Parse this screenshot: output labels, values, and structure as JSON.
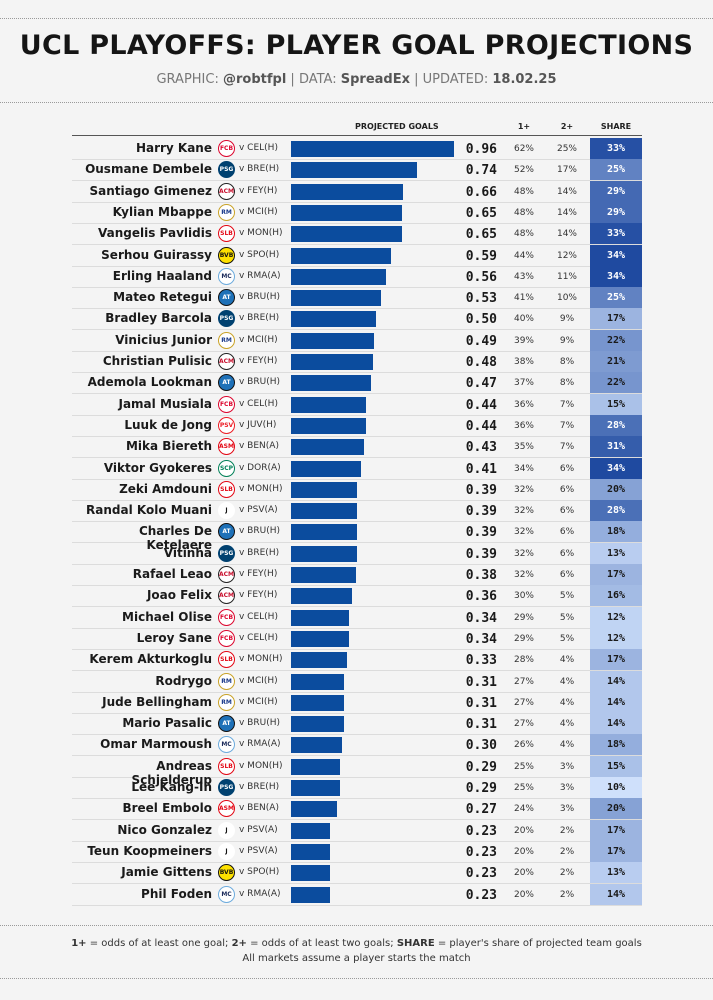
{
  "header": {
    "title": "UCL PLAYOFFS: PLAYER GOAL PROJECTIONS",
    "graphic_label": "GRAPHIC:",
    "graphic_value": "@robtfpl",
    "data_label": "DATA:",
    "data_value": "SpreadEx",
    "updated_label": "UPDATED:",
    "updated_value": "18.02.25"
  },
  "columns": {
    "projected": "PROJECTED GOALS",
    "one_plus": "1+",
    "two_plus": "2+",
    "share": "SHARE"
  },
  "colors": {
    "bar": "#0b4c9e",
    "share_scale": [
      "#cfe0fb",
      "#1f4aa0"
    ]
  },
  "footnote": {
    "key1": "1+",
    "text1": " = odds of at least one goal; ",
    "key2": "2+",
    "text2": " = odds of at least two goals; ",
    "key3": "SHARE",
    "text3": " = player's share of projected team goals",
    "line2": "All markets assume a player starts the match"
  },
  "chart_data": {
    "type": "bar",
    "xlim": [
      0,
      1
    ],
    "categories": [
      "Harry Kane",
      "Ousmane Dembele",
      "Santiago Gimenez",
      "Kylian Mbappe",
      "Vangelis Pavlidis",
      "Serhou Guirassy",
      "Erling Haaland",
      "Mateo Retegui",
      "Bradley Barcola",
      "Vinicius Junior",
      "Christian Pulisic",
      "Ademola Lookman",
      "Jamal Musiala",
      "Luuk de Jong",
      "Mika Biereth",
      "Viktor Gyokeres",
      "Zeki Amdouni",
      "Randal Kolo Muani",
      "Charles De Ketelaere",
      "Vitinha",
      "Rafael Leao",
      "Joao Felix",
      "Michael Olise",
      "Leroy Sane",
      "Kerem Akturkoglu",
      "Rodrygo",
      "Jude Bellingham",
      "Mario Pasalic",
      "Omar Marmoush",
      "Andreas Schjelderup",
      "Lee Kang-In",
      "Breel Embolo",
      "Nico Gonzalez",
      "Teun Koopmeiners",
      "Jamie Gittens",
      "Phil Foden"
    ],
    "rows": [
      {
        "player": "Harry Kane",
        "club": "bayern",
        "fixture": "v CEL(H)",
        "goals": "0.96",
        "one_plus": "62%",
        "two_plus": "25%",
        "share": "33%"
      },
      {
        "player": "Ousmane Dembele",
        "club": "psg",
        "fixture": "v BRE(H)",
        "goals": "0.74",
        "one_plus": "52%",
        "two_plus": "17%",
        "share": "25%"
      },
      {
        "player": "Santiago Gimenez",
        "club": "milan",
        "fixture": "v FEY(H)",
        "goals": "0.66",
        "one_plus": "48%",
        "two_plus": "14%",
        "share": "29%"
      },
      {
        "player": "Kylian Mbappe",
        "club": "real-madrid",
        "fixture": "v MCI(H)",
        "goals": "0.65",
        "one_plus": "48%",
        "two_plus": "14%",
        "share": "29%"
      },
      {
        "player": "Vangelis Pavlidis",
        "club": "benfica",
        "fixture": "v MON(H)",
        "goals": "0.65",
        "one_plus": "48%",
        "two_plus": "14%",
        "share": "33%"
      },
      {
        "player": "Serhou Guirassy",
        "club": "dortmund",
        "fixture": "v SPO(H)",
        "goals": "0.59",
        "one_plus": "44%",
        "two_plus": "12%",
        "share": "34%"
      },
      {
        "player": "Erling Haaland",
        "club": "man-city",
        "fixture": "v RMA(A)",
        "goals": "0.56",
        "one_plus": "43%",
        "two_plus": "11%",
        "share": "34%"
      },
      {
        "player": "Mateo Retegui",
        "club": "atalanta",
        "fixture": "v BRU(H)",
        "goals": "0.53",
        "one_plus": "41%",
        "two_plus": "10%",
        "share": "25%"
      },
      {
        "player": "Bradley Barcola",
        "club": "psg",
        "fixture": "v BRE(H)",
        "goals": "0.50",
        "one_plus": "40%",
        "two_plus": "9%",
        "share": "17%"
      },
      {
        "player": "Vinicius Junior",
        "club": "real-madrid",
        "fixture": "v MCI(H)",
        "goals": "0.49",
        "one_plus": "39%",
        "two_plus": "9%",
        "share": "22%"
      },
      {
        "player": "Christian Pulisic",
        "club": "milan",
        "fixture": "v FEY(H)",
        "goals": "0.48",
        "one_plus": "38%",
        "two_plus": "8%",
        "share": "21%"
      },
      {
        "player": "Ademola Lookman",
        "club": "atalanta",
        "fixture": "v BRU(H)",
        "goals": "0.47",
        "one_plus": "37%",
        "two_plus": "8%",
        "share": "22%"
      },
      {
        "player": "Jamal Musiala",
        "club": "bayern",
        "fixture": "v CEL(H)",
        "goals": "0.44",
        "one_plus": "36%",
        "two_plus": "7%",
        "share": "15%"
      },
      {
        "player": "Luuk de Jong",
        "club": "psv",
        "fixture": "v JUV(H)",
        "goals": "0.44",
        "one_plus": "36%",
        "two_plus": "7%",
        "share": "28%"
      },
      {
        "player": "Mika Biereth",
        "club": "monaco",
        "fixture": "v BEN(A)",
        "goals": "0.43",
        "one_plus": "35%",
        "two_plus": "7%",
        "share": "31%"
      },
      {
        "player": "Viktor Gyokeres",
        "club": "sporting",
        "fixture": "v DOR(A)",
        "goals": "0.41",
        "one_plus": "34%",
        "two_plus": "6%",
        "share": "34%"
      },
      {
        "player": "Zeki Amdouni",
        "club": "benfica",
        "fixture": "v MON(H)",
        "goals": "0.39",
        "one_plus": "32%",
        "two_plus": "6%",
        "share": "20%"
      },
      {
        "player": "Randal Kolo Muani",
        "club": "juventus",
        "fixture": "v PSV(A)",
        "goals": "0.39",
        "one_plus": "32%",
        "two_plus": "6%",
        "share": "28%"
      },
      {
        "player": "Charles De Ketelaere",
        "club": "atalanta",
        "fixture": "v BRU(H)",
        "goals": "0.39",
        "one_plus": "32%",
        "two_plus": "6%",
        "share": "18%"
      },
      {
        "player": "Vitinha",
        "club": "psg",
        "fixture": "v BRE(H)",
        "goals": "0.39",
        "one_plus": "32%",
        "two_plus": "6%",
        "share": "13%"
      },
      {
        "player": "Rafael Leao",
        "club": "milan",
        "fixture": "v FEY(H)",
        "goals": "0.38",
        "one_plus": "32%",
        "two_plus": "6%",
        "share": "17%"
      },
      {
        "player": "Joao Felix",
        "club": "milan",
        "fixture": "v FEY(H)",
        "goals": "0.36",
        "one_plus": "30%",
        "two_plus": "5%",
        "share": "16%"
      },
      {
        "player": "Michael Olise",
        "club": "bayern",
        "fixture": "v CEL(H)",
        "goals": "0.34",
        "one_plus": "29%",
        "two_plus": "5%",
        "share": "12%"
      },
      {
        "player": "Leroy Sane",
        "club": "bayern",
        "fixture": "v CEL(H)",
        "goals": "0.34",
        "one_plus": "29%",
        "two_plus": "5%",
        "share": "12%"
      },
      {
        "player": "Kerem Akturkoglu",
        "club": "benfica",
        "fixture": "v MON(H)",
        "goals": "0.33",
        "one_plus": "28%",
        "two_plus": "4%",
        "share": "17%"
      },
      {
        "player": "Rodrygo",
        "club": "real-madrid",
        "fixture": "v MCI(H)",
        "goals": "0.31",
        "one_plus": "27%",
        "two_plus": "4%",
        "share": "14%"
      },
      {
        "player": "Jude Bellingham",
        "club": "real-madrid",
        "fixture": "v MCI(H)",
        "goals": "0.31",
        "one_plus": "27%",
        "two_plus": "4%",
        "share": "14%"
      },
      {
        "player": "Mario Pasalic",
        "club": "atalanta",
        "fixture": "v BRU(H)",
        "goals": "0.31",
        "one_plus": "27%",
        "two_plus": "4%",
        "share": "14%"
      },
      {
        "player": "Omar Marmoush",
        "club": "man-city",
        "fixture": "v RMA(A)",
        "goals": "0.30",
        "one_plus": "26%",
        "two_plus": "4%",
        "share": "18%"
      },
      {
        "player": "Andreas Schjelderup",
        "club": "benfica",
        "fixture": "v MON(H)",
        "goals": "0.29",
        "one_plus": "25%",
        "two_plus": "3%",
        "share": "15%"
      },
      {
        "player": "Lee Kang-In",
        "club": "psg",
        "fixture": "v BRE(H)",
        "goals": "0.29",
        "one_plus": "25%",
        "two_plus": "3%",
        "share": "10%"
      },
      {
        "player": "Breel Embolo",
        "club": "monaco",
        "fixture": "v BEN(A)",
        "goals": "0.27",
        "one_plus": "24%",
        "two_plus": "3%",
        "share": "20%"
      },
      {
        "player": "Nico Gonzalez",
        "club": "juventus",
        "fixture": "v PSV(A)",
        "goals": "0.23",
        "one_plus": "20%",
        "two_plus": "2%",
        "share": "17%"
      },
      {
        "player": "Teun Koopmeiners",
        "club": "juventus",
        "fixture": "v PSV(A)",
        "goals": "0.23",
        "one_plus": "20%",
        "two_plus": "2%",
        "share": "17%"
      },
      {
        "player": "Jamie Gittens",
        "club": "dortmund",
        "fixture": "v SPO(H)",
        "goals": "0.23",
        "one_plus": "20%",
        "two_plus": "2%",
        "share": "13%"
      },
      {
        "player": "Phil Foden",
        "club": "man-city",
        "fixture": "v RMA(A)",
        "goals": "0.23",
        "one_plus": "20%",
        "two_plus": "2%",
        "share": "14%"
      }
    ]
  }
}
